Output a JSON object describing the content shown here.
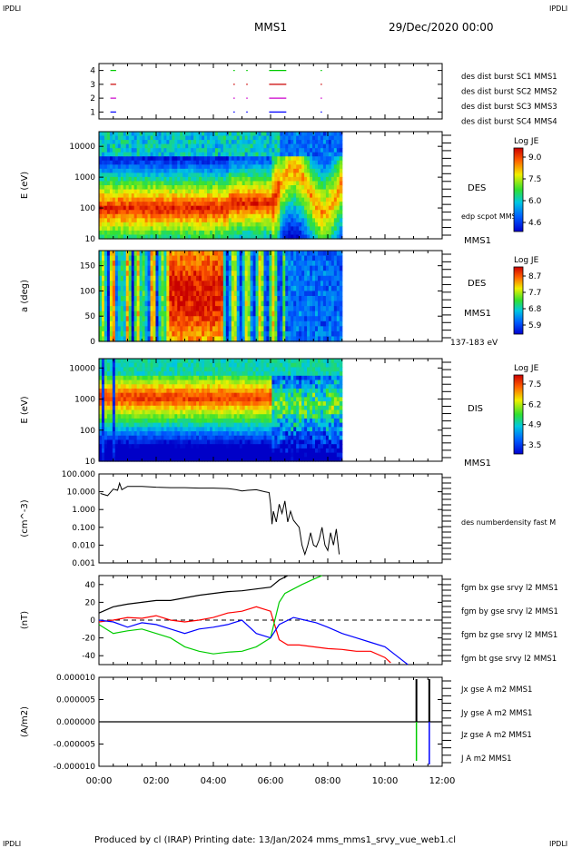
{
  "corners": {
    "top_left": "IPDLI",
    "top_right": "IPDLI",
    "bottom_left": "IPDLI",
    "bottom_right": "IPDLI"
  },
  "header": {
    "spacecraft": "MMS1",
    "date": "29/Dec/2020 00:00"
  },
  "footer": {
    "text": "Produced by cl (IRAP)   Printing date: 13/Jan/2024   mms_mms1_srvy_vue_web1.cl"
  },
  "colors": {
    "accent_corner": "#0000cc",
    "bx": "#ff0000",
    "by": "#00cc00",
    "bz": "#0000ff",
    "bt": "#000000",
    "c1": "#0000ff",
    "c2": "#cc00cc",
    "c3": "#cc0000",
    "c4": "#00cc00"
  },
  "chart_data": [
    {
      "id": "burst",
      "type": "scatter",
      "x_range": [
        0,
        12
      ],
      "y_ticks": [
        "1",
        "2",
        "3",
        "4"
      ],
      "ylim": [
        0.5,
        4.5
      ],
      "series": [
        {
          "name": "des dist burst SC1 MMS1",
          "level": 1,
          "segments": [
            [
              0.4,
              0.6
            ],
            [
              4.7,
              4.75
            ],
            [
              5.15,
              5.2
            ],
            [
              5.95,
              6.55
            ],
            [
              7.75,
              7.78
            ]
          ]
        },
        {
          "name": "des dist burst SC2 MMS2",
          "level": 2,
          "segments": [
            [
              0.4,
              0.6
            ],
            [
              4.7,
              4.75
            ],
            [
              5.15,
              5.2
            ],
            [
              5.95,
              6.55
            ],
            [
              7.75,
              7.78
            ]
          ]
        },
        {
          "name": "des dist burst SC3 MMS3",
          "level": 3,
          "segments": [
            [
              0.4,
              0.6
            ],
            [
              4.7,
              4.75
            ],
            [
              5.15,
              5.2
            ],
            [
              5.95,
              6.55
            ],
            [
              7.75,
              7.78
            ]
          ]
        },
        {
          "name": "des dist burst SC4 MMS4",
          "level": 4,
          "segments": [
            [
              0.4,
              0.6
            ],
            [
              4.7,
              4.75
            ],
            [
              5.15,
              5.2
            ],
            [
              5.95,
              6.55
            ],
            [
              7.75,
              7.78
            ]
          ]
        }
      ]
    },
    {
      "id": "des_energy",
      "type": "heatmap",
      "ylabel": "E (eV)",
      "y_ticks": [
        "10",
        "100",
        "1000",
        "10000"
      ],
      "ylim": [
        10,
        30000
      ],
      "x_range": [
        0,
        8.5
      ],
      "right_labels": [
        "DES",
        "edp scpot MMS1",
        "MMS1"
      ],
      "colorbar": {
        "title": "Log JE",
        "ticks": [
          "9.0",
          "7.5",
          "6.0",
          "4.6"
        ],
        "range": [
          4.6,
          9.0
        ]
      }
    },
    {
      "id": "des_pitch",
      "type": "heatmap",
      "ylabel": "a (deg)",
      "y_ticks": [
        "0",
        "50",
        "100",
        "150"
      ],
      "ylim": [
        0,
        180
      ],
      "x_range": [
        0,
        8.5
      ],
      "right_labels": [
        "DES",
        "MMS1",
        "137-183 eV"
      ],
      "colorbar": {
        "title": "Log JE",
        "ticks": [
          "8.7",
          "7.7",
          "6.8",
          "5.9"
        ],
        "range": [
          5.9,
          8.7
        ]
      }
    },
    {
      "id": "dis_energy",
      "type": "heatmap",
      "ylabel": "E (eV)",
      "y_ticks": [
        "10",
        "100",
        "1000",
        "10000"
      ],
      "ylim": [
        10,
        20000
      ],
      "x_range": [
        0,
        8.5
      ],
      "right_labels": [
        "DIS",
        "MMS1"
      ],
      "colorbar": {
        "title": "Log JE",
        "ticks": [
          "7.5",
          "6.2",
          "4.9",
          "3.5"
        ],
        "range": [
          3.5,
          7.5
        ]
      }
    },
    {
      "id": "density",
      "type": "line",
      "ylabel": "(cm^-3)",
      "y_ticks": [
        "0.001",
        "0.010",
        "0.100",
        "1.000",
        "10.000",
        "100.000"
      ],
      "ylim": [
        0.001,
        100
      ],
      "series": [
        {
          "name": "des numberdensity fast M",
          "x": [
            0.05,
            0.3,
            0.5,
            0.65,
            0.72,
            0.8,
            1.0,
            1.5,
            2.0,
            2.5,
            3.0,
            3.5,
            4.0,
            4.5,
            4.8,
            5.0,
            5.2,
            5.5,
            5.8,
            5.95,
            6.0,
            6.05,
            6.1,
            6.2,
            6.3,
            6.4,
            6.5,
            6.6,
            6.7,
            6.8,
            7.0,
            7.1,
            7.2,
            7.3,
            7.4,
            7.5,
            7.6,
            7.7,
            7.8,
            7.9,
            8.0,
            8.1,
            8.2,
            8.3,
            8.4
          ],
          "y": [
            8,
            6,
            14,
            12,
            30,
            13,
            20,
            20,
            18,
            17,
            17,
            16,
            16,
            15,
            13,
            11,
            12,
            13,
            10,
            9,
            2,
            0.15,
            0.8,
            0.2,
            2,
            0.6,
            3,
            0.2,
            0.8,
            0.25,
            0.1,
            0.01,
            0.003,
            0.01,
            0.05,
            0.01,
            0.008,
            0.02,
            0.1,
            0.01,
            0.005,
            0.05,
            0.01,
            0.08,
            0.003
          ]
        }
      ]
    },
    {
      "id": "bfield",
      "type": "line",
      "ylabel": "(nT)",
      "y_ticks": [
        "-40",
        "-20",
        "0",
        "20",
        "40"
      ],
      "ylim": [
        -50,
        50
      ],
      "series": [
        {
          "name": "fgm bx gse srvy l2 MMS1",
          "x": [
            0,
            0.5,
            1,
            1.5,
            2,
            2.5,
            3,
            3.5,
            4,
            4.5,
            5,
            5.5,
            6,
            6.3,
            6.6,
            7,
            7.5,
            8,
            8.5,
            9,
            9.5,
            10,
            10.2
          ],
          "y": [
            -2,
            0,
            3,
            2,
            5,
            0,
            -2,
            0,
            3,
            8,
            10,
            15,
            10,
            -22,
            -28,
            -28,
            -30,
            -32,
            -33,
            -35,
            -35,
            -42,
            -48
          ]
        },
        {
          "name": "fgm by gse srvy l2 MMS1",
          "x": [
            0,
            0.5,
            1,
            1.5,
            2,
            2.5,
            3,
            3.5,
            4,
            4.5,
            5,
            5.5,
            6,
            6.3,
            6.5,
            6.8,
            7.1,
            7.5,
            7.8
          ],
          "y": [
            -5,
            -15,
            -12,
            -10,
            -15,
            -20,
            -30,
            -35,
            -38,
            -36,
            -35,
            -30,
            -20,
            20,
            30,
            35,
            40,
            46,
            50
          ]
        },
        {
          "name": "fgm bz gse srvy l2 MMS1",
          "x": [
            0,
            0.5,
            1,
            1.5,
            2,
            2.5,
            3,
            3.5,
            4,
            4.5,
            5,
            5.5,
            6,
            6.3,
            6.8,
            7.2,
            7.6,
            8,
            8.5,
            9,
            9.5,
            10,
            10.4,
            10.8
          ],
          "y": [
            0,
            -2,
            -8,
            -3,
            -5,
            -10,
            -15,
            -10,
            -8,
            -5,
            0,
            -15,
            -20,
            -5,
            3,
            0,
            -3,
            -8,
            -15,
            -20,
            -25,
            -30,
            -40,
            -50
          ]
        },
        {
          "name": "fgm bt gse srvy l2 MMS1",
          "x": [
            0,
            0.5,
            1,
            1.5,
            2,
            2.5,
            3,
            3.5,
            4,
            4.5,
            5,
            5.5,
            6,
            6.3,
            6.6
          ],
          "y": [
            8,
            15,
            18,
            20,
            22,
            22,
            25,
            28,
            30,
            32,
            33,
            35,
            37,
            45,
            50
          ]
        }
      ]
    },
    {
      "id": "current",
      "type": "line",
      "ylabel": "(A/m2)",
      "y_ticks": [
        "-0.000010",
        "-0.000005",
        "0.000000",
        "0.000005",
        "0.000010"
      ],
      "ylim": [
        -1e-05,
        1e-05
      ],
      "x_ticks": [
        "00:00",
        "02:00",
        "04:00",
        "06:00",
        "08:00",
        "10:00",
        "12:00"
      ],
      "series": [
        {
          "name": "Jx gse A m2 MMS1"
        },
        {
          "name": "Jy gse A m2 MMS1"
        },
        {
          "name": "Jz gse A m2 MMS1"
        },
        {
          "name": "J A m2 MMS1"
        }
      ]
    }
  ]
}
